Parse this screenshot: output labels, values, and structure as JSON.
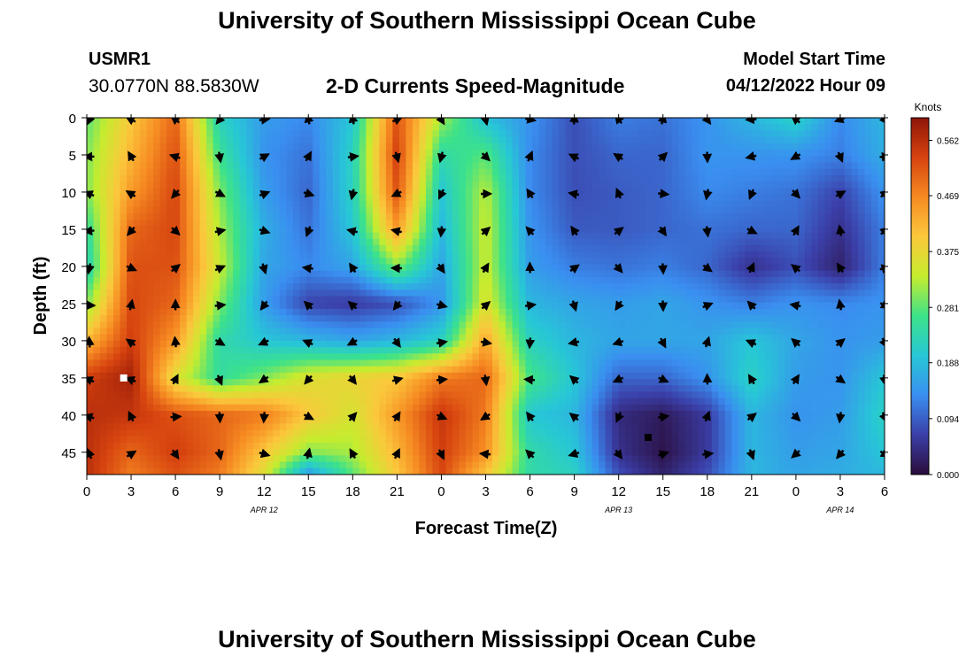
{
  "header": {
    "title": "University of Southern Mississippi Ocean Cube",
    "station_id": "USMR1",
    "station_coords": "30.0770N  88.5830W",
    "subtitle": "2-D Currents Speed-Magnitude",
    "model_start_label": "Model Start Time",
    "model_start_value": "04/12/2022 Hour 09"
  },
  "footer": {
    "title": "University of Southern Mississippi Ocean Cube"
  },
  "chart_data": {
    "type": "heatmap",
    "title": "2-D Currents Speed-Magnitude",
    "xlabel": "Forecast Time(Z)",
    "ylabel": "Depth (ft)",
    "x_tick_labels": [
      "0",
      "3",
      "6",
      "9",
      "12",
      "15",
      "18",
      "21",
      "0",
      "3",
      "6",
      "9",
      "12",
      "15",
      "18",
      "21",
      "0",
      "3",
      "6"
    ],
    "x_range_hours": [
      0,
      54
    ],
    "date_labels": [
      {
        "label": "APR 12",
        "hour": 12
      },
      {
        "label": "APR 13",
        "hour": 36
      },
      {
        "label": "APR 14",
        "hour": 51
      }
    ],
    "y_ticks": [
      0,
      5,
      10,
      15,
      20,
      25,
      30,
      35,
      40,
      45
    ],
    "y_range": [
      0,
      48
    ],
    "colorbar": {
      "label": "Knots",
      "ticks": [
        "0.562",
        "0.469",
        "0.375",
        "0.281",
        "0.188",
        "0.094",
        "0.000"
      ],
      "min": 0.0,
      "max": 0.6,
      "colors": [
        "#2a0c3a",
        "#3b3fa8",
        "#3a8ef0",
        "#27c7d6",
        "#3ce28a",
        "#c6ec2e",
        "#fbc83c",
        "#f68a22",
        "#d6430f",
        "#8e1508"
      ]
    },
    "depths": [
      0,
      5,
      10,
      15,
      20,
      25,
      30,
      35,
      40,
      45,
      48
    ],
    "hours": [
      0,
      3,
      6,
      9,
      12,
      15,
      18,
      21,
      24,
      27,
      30,
      33,
      36,
      39,
      42,
      45,
      48,
      51,
      54
    ],
    "speed": [
      [
        0.28,
        0.4,
        0.5,
        0.22,
        0.15,
        0.13,
        0.2,
        0.52,
        0.32,
        0.19,
        0.14,
        0.08,
        0.12,
        0.11,
        0.14,
        0.18,
        0.22,
        0.13,
        0.18
      ],
      [
        0.3,
        0.42,
        0.52,
        0.26,
        0.14,
        0.11,
        0.22,
        0.54,
        0.24,
        0.28,
        0.13,
        0.08,
        0.1,
        0.1,
        0.14,
        0.14,
        0.14,
        0.12,
        0.17
      ],
      [
        0.3,
        0.45,
        0.53,
        0.3,
        0.15,
        0.1,
        0.22,
        0.52,
        0.2,
        0.33,
        0.13,
        0.08,
        0.09,
        0.1,
        0.13,
        0.12,
        0.11,
        0.07,
        0.14
      ],
      [
        0.25,
        0.5,
        0.53,
        0.32,
        0.17,
        0.11,
        0.2,
        0.45,
        0.18,
        0.34,
        0.14,
        0.09,
        0.09,
        0.1,
        0.11,
        0.1,
        0.1,
        0.05,
        0.12
      ],
      [
        0.22,
        0.52,
        0.52,
        0.34,
        0.16,
        0.13,
        0.16,
        0.3,
        0.16,
        0.34,
        0.15,
        0.12,
        0.11,
        0.12,
        0.1,
        0.05,
        0.08,
        0.03,
        0.12
      ],
      [
        0.3,
        0.53,
        0.5,
        0.3,
        0.15,
        0.07,
        0.06,
        0.08,
        0.14,
        0.36,
        0.18,
        0.16,
        0.15,
        0.16,
        0.14,
        0.12,
        0.14,
        0.13,
        0.14
      ],
      [
        0.42,
        0.54,
        0.45,
        0.24,
        0.2,
        0.18,
        0.16,
        0.18,
        0.22,
        0.44,
        0.22,
        0.18,
        0.16,
        0.16,
        0.16,
        0.2,
        0.16,
        0.14,
        0.15
      ],
      [
        0.54,
        0.58,
        0.36,
        0.25,
        0.3,
        0.36,
        0.38,
        0.4,
        0.48,
        0.5,
        0.27,
        0.2,
        0.1,
        0.1,
        0.14,
        0.22,
        0.15,
        0.14,
        0.2
      ],
      [
        0.56,
        0.55,
        0.52,
        0.5,
        0.48,
        0.4,
        0.35,
        0.45,
        0.55,
        0.48,
        0.2,
        0.18,
        0.04,
        0.02,
        0.06,
        0.18,
        0.14,
        0.15,
        0.22
      ],
      [
        0.56,
        0.5,
        0.54,
        0.5,
        0.4,
        0.3,
        0.32,
        0.42,
        0.54,
        0.46,
        0.24,
        0.2,
        0.05,
        0.01,
        0.06,
        0.18,
        0.15,
        0.16,
        0.2
      ],
      [
        0.56,
        0.48,
        0.52,
        0.48,
        0.36,
        0.14,
        0.28,
        0.4,
        0.53,
        0.4,
        0.24,
        0.22,
        0.08,
        0.03,
        0.08,
        0.18,
        0.16,
        0.17,
        0.18
      ]
    ],
    "markers": [
      {
        "hour": 2.5,
        "depth": 35,
        "color": "#ffffff"
      },
      {
        "hour": 38,
        "depth": 43,
        "color": "#000000"
      }
    ]
  }
}
